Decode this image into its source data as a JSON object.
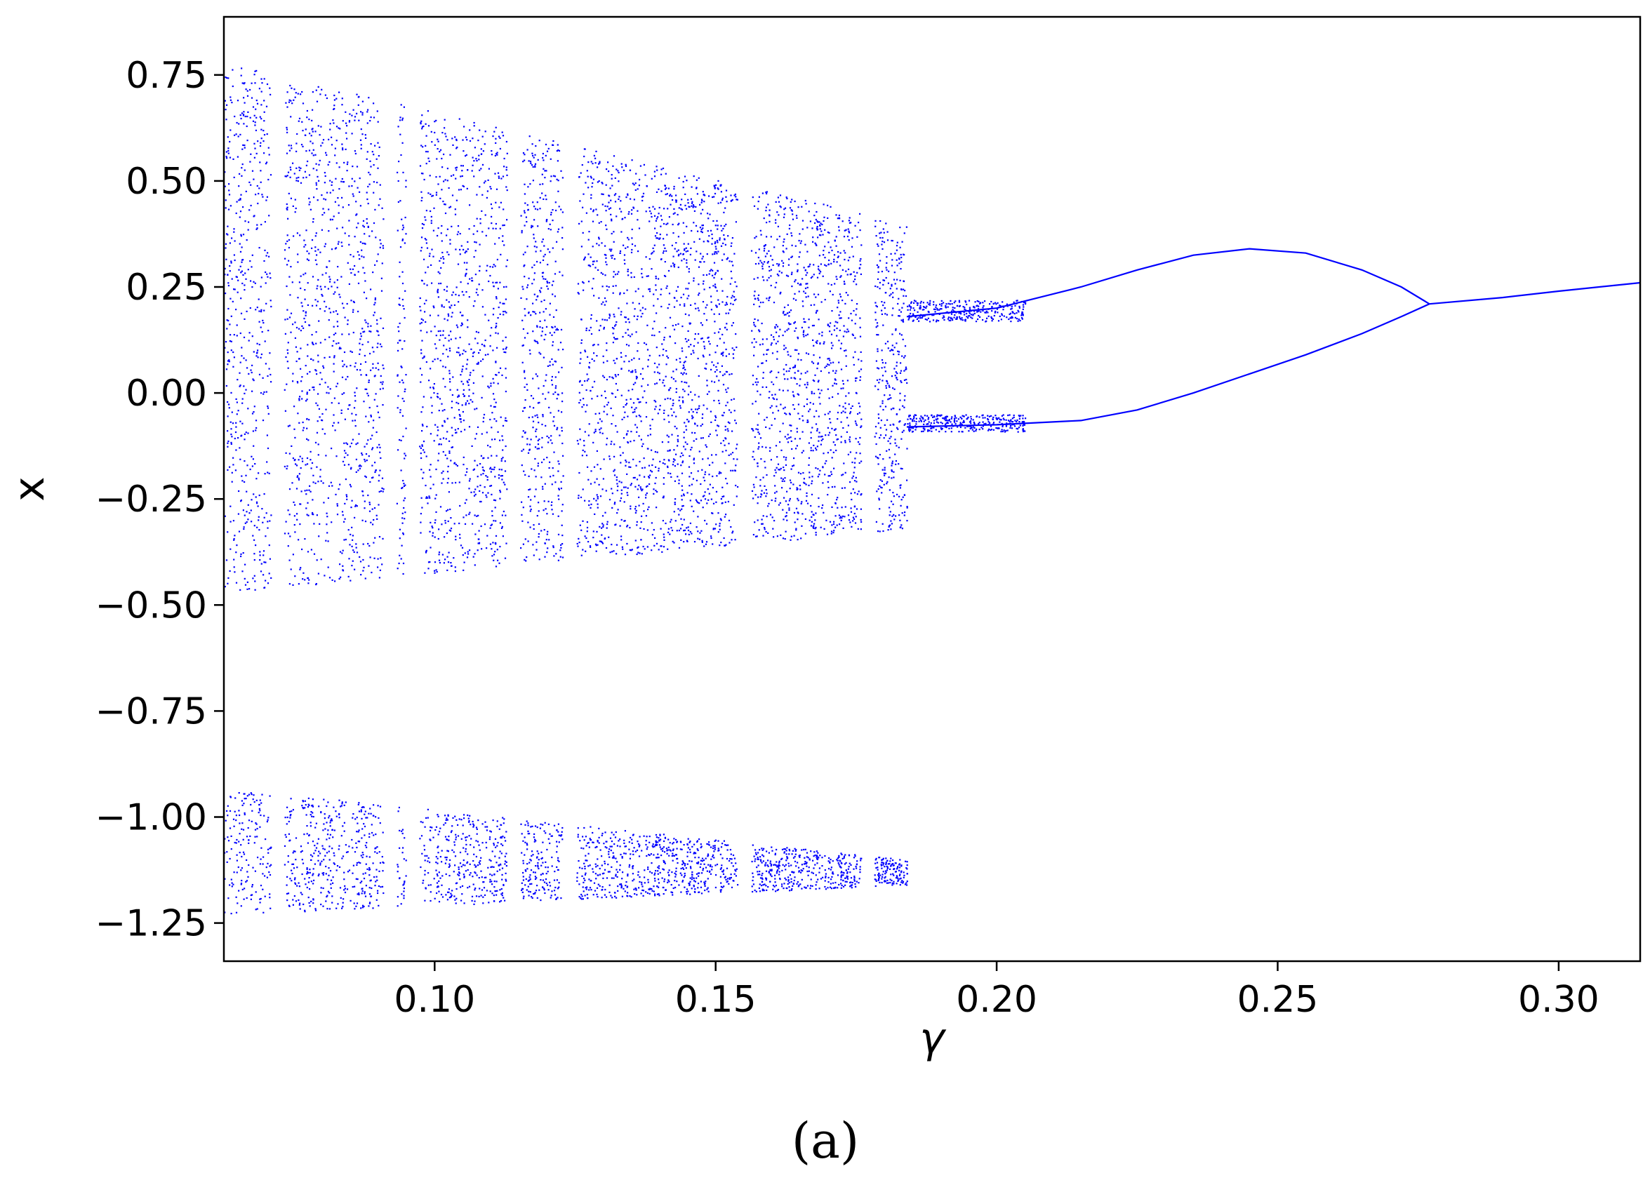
{
  "chart_data": {
    "type": "scatter",
    "title": "",
    "xlabel": "γ",
    "ylabel": "x",
    "xlim": [
      0.0625,
      0.3145
    ],
    "ylim": [
      -1.34,
      0.887
    ],
    "xticks": [
      {
        "value": 0.1,
        "label": "0.10"
      },
      {
        "value": 0.15,
        "label": "0.15"
      },
      {
        "value": 0.2,
        "label": "0.20"
      },
      {
        "value": 0.25,
        "label": "0.25"
      },
      {
        "value": 0.3,
        "label": "0.30"
      }
    ],
    "yticks": [
      {
        "value": 0.75,
        "label": "0.75"
      },
      {
        "value": 0.5,
        "label": "0.50"
      },
      {
        "value": 0.25,
        "label": "0.25"
      },
      {
        "value": 0.0,
        "label": "0.00"
      },
      {
        "value": -0.25,
        "label": "−0.25"
      },
      {
        "value": -0.5,
        "label": "−0.50"
      },
      {
        "value": -0.75,
        "label": "−0.75"
      },
      {
        "value": -1.0,
        "label": "−1.00"
      },
      {
        "value": -1.25,
        "label": "−1.25"
      }
    ],
    "grid": false,
    "legend": "none",
    "point_color": "#0000ff",
    "description_of_series": "bifurcation diagram: chaotic bands for gamma < 0.185, period-2 branches merging into a single fixed point near gamma = 0.277",
    "chaotic_regions": [
      {
        "gamma": [
          0.0625,
          0.184
        ],
        "x_upper_band": [
          -0.47,
          0.78
        ],
        "x_lower_band": [
          -1.23,
          -0.93
        ]
      }
    ],
    "periodic_windows_gamma": [
      0.072,
      0.092,
      0.096,
      0.114,
      0.124,
      0.155,
      0.177
    ],
    "branches": [
      {
        "name": "upper",
        "points": [
          [
            0.184,
            0.18
          ],
          [
            0.2,
            0.2
          ],
          [
            0.215,
            0.25
          ],
          [
            0.225,
            0.29
          ],
          [
            0.235,
            0.325
          ],
          [
            0.245,
            0.34
          ],
          [
            0.255,
            0.33
          ],
          [
            0.265,
            0.29
          ],
          [
            0.272,
            0.25
          ],
          [
            0.277,
            0.21
          ]
        ]
      },
      {
        "name": "lower",
        "points": [
          [
            0.184,
            -0.08
          ],
          [
            0.2,
            -0.075
          ],
          [
            0.215,
            -0.065
          ],
          [
            0.225,
            -0.04
          ],
          [
            0.235,
            0.0
          ],
          [
            0.245,
            0.045
          ],
          [
            0.255,
            0.09
          ],
          [
            0.265,
            0.14
          ],
          [
            0.272,
            0.18
          ],
          [
            0.277,
            0.21
          ]
        ]
      },
      {
        "name": "fixed",
        "points": [
          [
            0.277,
            0.21
          ],
          [
            0.29,
            0.225
          ],
          [
            0.3,
            0.24
          ],
          [
            0.3145,
            0.26
          ]
        ]
      }
    ]
  },
  "caption": "(a)"
}
